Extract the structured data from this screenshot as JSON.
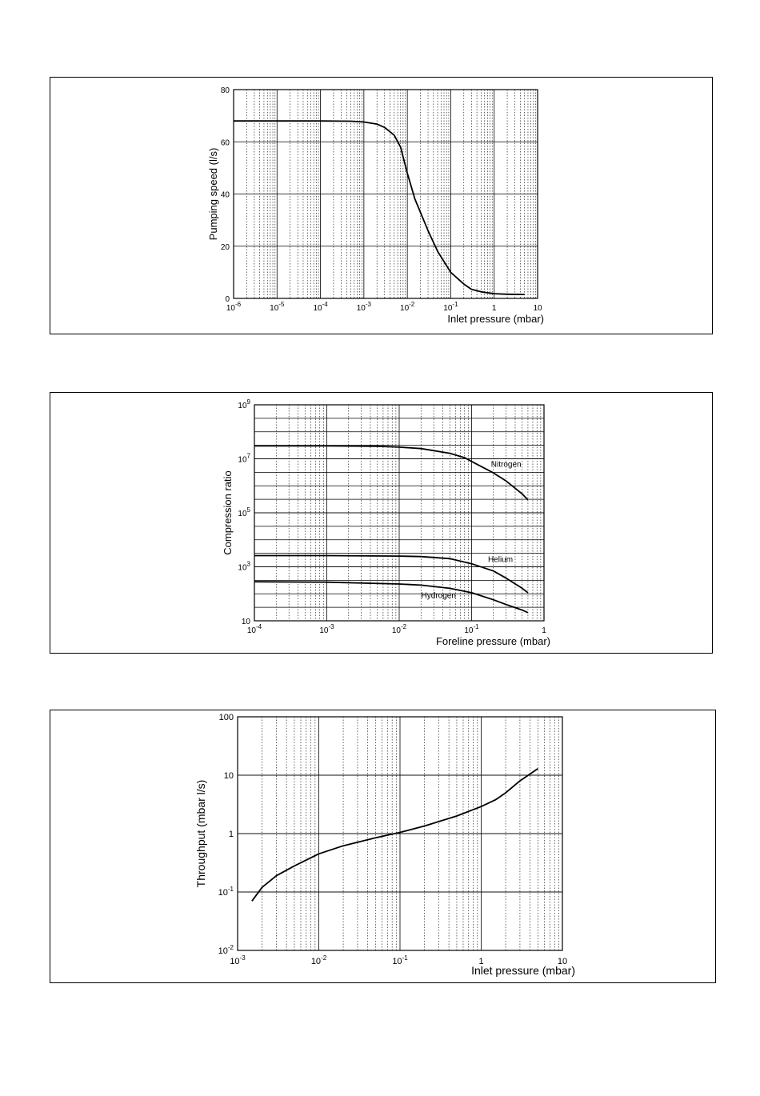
{
  "chart_data": [
    {
      "type": "line",
      "xlabel": "Inlet pressure (mbar)",
      "ylabel": "Pumping speed (l/s)",
      "xscale": "log",
      "xlim": [
        1e-06,
        10
      ],
      "ylim": [
        0,
        80
      ],
      "x_ticks": [
        1e-06,
        1e-05,
        0.0001,
        0.001,
        0.01,
        0.1,
        1,
        10
      ],
      "x_tick_labels": [
        [
          "10",
          "-6"
        ],
        [
          "10",
          "-5"
        ],
        [
          "10",
          "-4"
        ],
        [
          "10",
          "-3"
        ],
        [
          "10",
          "-2"
        ],
        [
          "10",
          "-1"
        ],
        [
          "1",
          ""
        ],
        [
          "10",
          ""
        ]
      ],
      "y_ticks": [
        0,
        20,
        40,
        60,
        80
      ],
      "y_tick_labels": [
        "0",
        "20",
        "40",
        "60",
        "80"
      ],
      "grid": true,
      "series": [
        {
          "x": [
            1e-06,
            1e-05,
            0.0001,
            0.0005,
            0.001,
            0.002,
            0.003,
            0.005,
            0.007,
            0.01,
            0.015,
            0.02,
            0.03,
            0.05,
            0.1,
            0.2,
            0.3,
            0.5,
            1,
            2,
            5
          ],
          "y": [
            68,
            68,
            68,
            67.9,
            67.6,
            66.8,
            65.5,
            62.5,
            58,
            48,
            38,
            33,
            26,
            18,
            10,
            5.5,
            3.5,
            2.5,
            1.8,
            1.6,
            1.5
          ]
        }
      ]
    },
    {
      "type": "line",
      "xlabel": "Foreline pressure (mbar)",
      "ylabel": "Compression ratio",
      "xscale": "log",
      "yscale": "log",
      "xlim": [
        0.0001,
        1
      ],
      "ylim": [
        10,
        1000000000.0
      ],
      "x_ticks": [
        0.0001,
        0.001,
        0.01,
        0.1,
        1
      ],
      "x_tick_labels": [
        [
          "10",
          "-4"
        ],
        [
          "10",
          "-3"
        ],
        [
          "10",
          "-2"
        ],
        [
          "10",
          "-1"
        ],
        [
          "1",
          ""
        ]
      ],
      "y_ticks": [
        10,
        1000.0,
        100000.0,
        10000000.0,
        1000000000.0
      ],
      "y_tick_labels": [
        [
          "10",
          ""
        ],
        [
          "10",
          "3"
        ],
        [
          "10",
          "5"
        ],
        [
          "10",
          "7"
        ],
        [
          "10",
          "9"
        ]
      ],
      "grid": true,
      "series": [
        {
          "name": "Nitrogen",
          "x": [
            0.0001,
            0.001,
            0.005,
            0.01,
            0.02,
            0.05,
            0.08,
            0.1,
            0.2,
            0.3,
            0.5,
            0.6
          ],
          "y": [
            30000000.0,
            30000000.0,
            29000000.0,
            27000000.0,
            24000000.0,
            16000000.0,
            11000000.0,
            8000000.0,
            3000000.0,
            1500000.0,
            500000.0,
            300000.0
          ]
        },
        {
          "name": "Helium",
          "x": [
            0.0001,
            0.001,
            0.01,
            0.02,
            0.05,
            0.1,
            0.2,
            0.3,
            0.5,
            0.6
          ],
          "y": [
            2600,
            2600,
            2500,
            2400,
            2000,
            1300,
            700,
            380,
            160,
            110
          ]
        },
        {
          "name": "Hydrogen",
          "x": [
            0.0001,
            0.001,
            0.01,
            0.02,
            0.05,
            0.1,
            0.2,
            0.3,
            0.5,
            0.6
          ],
          "y": [
            280,
            270,
            230,
            210,
            160,
            110,
            60,
            40,
            25,
            20
          ]
        }
      ]
    },
    {
      "type": "line",
      "xlabel": "Inlet pressure (mbar)",
      "ylabel": "Throughput (mbar l/s)",
      "xscale": "log",
      "yscale": "log",
      "xlim": [
        0.001,
        10
      ],
      "ylim": [
        0.01,
        100
      ],
      "x_ticks": [
        0.001,
        0.01,
        0.1,
        1,
        10
      ],
      "x_tick_labels": [
        [
          "10",
          "-3"
        ],
        [
          "10",
          "-2"
        ],
        [
          "10",
          "-1"
        ],
        [
          "1",
          ""
        ],
        [
          "10",
          ""
        ]
      ],
      "y_ticks": [
        0.01,
        0.1,
        1,
        10,
        100
      ],
      "y_tick_labels": [
        [
          "10",
          "-2"
        ],
        [
          "10",
          "-1"
        ],
        [
          "1",
          ""
        ],
        [
          "10",
          ""
        ],
        [
          "100",
          ""
        ]
      ],
      "grid": true,
      "series": [
        {
          "x": [
            0.0015,
            0.002,
            0.003,
            0.005,
            0.01,
            0.02,
            0.05,
            0.1,
            0.2,
            0.5,
            1,
            1.5,
            2,
            3,
            5
          ],
          "y": [
            0.07,
            0.12,
            0.19,
            0.28,
            0.45,
            0.62,
            0.85,
            1.05,
            1.35,
            2.0,
            2.9,
            3.8,
            5,
            8,
            13
          ]
        }
      ]
    }
  ]
}
